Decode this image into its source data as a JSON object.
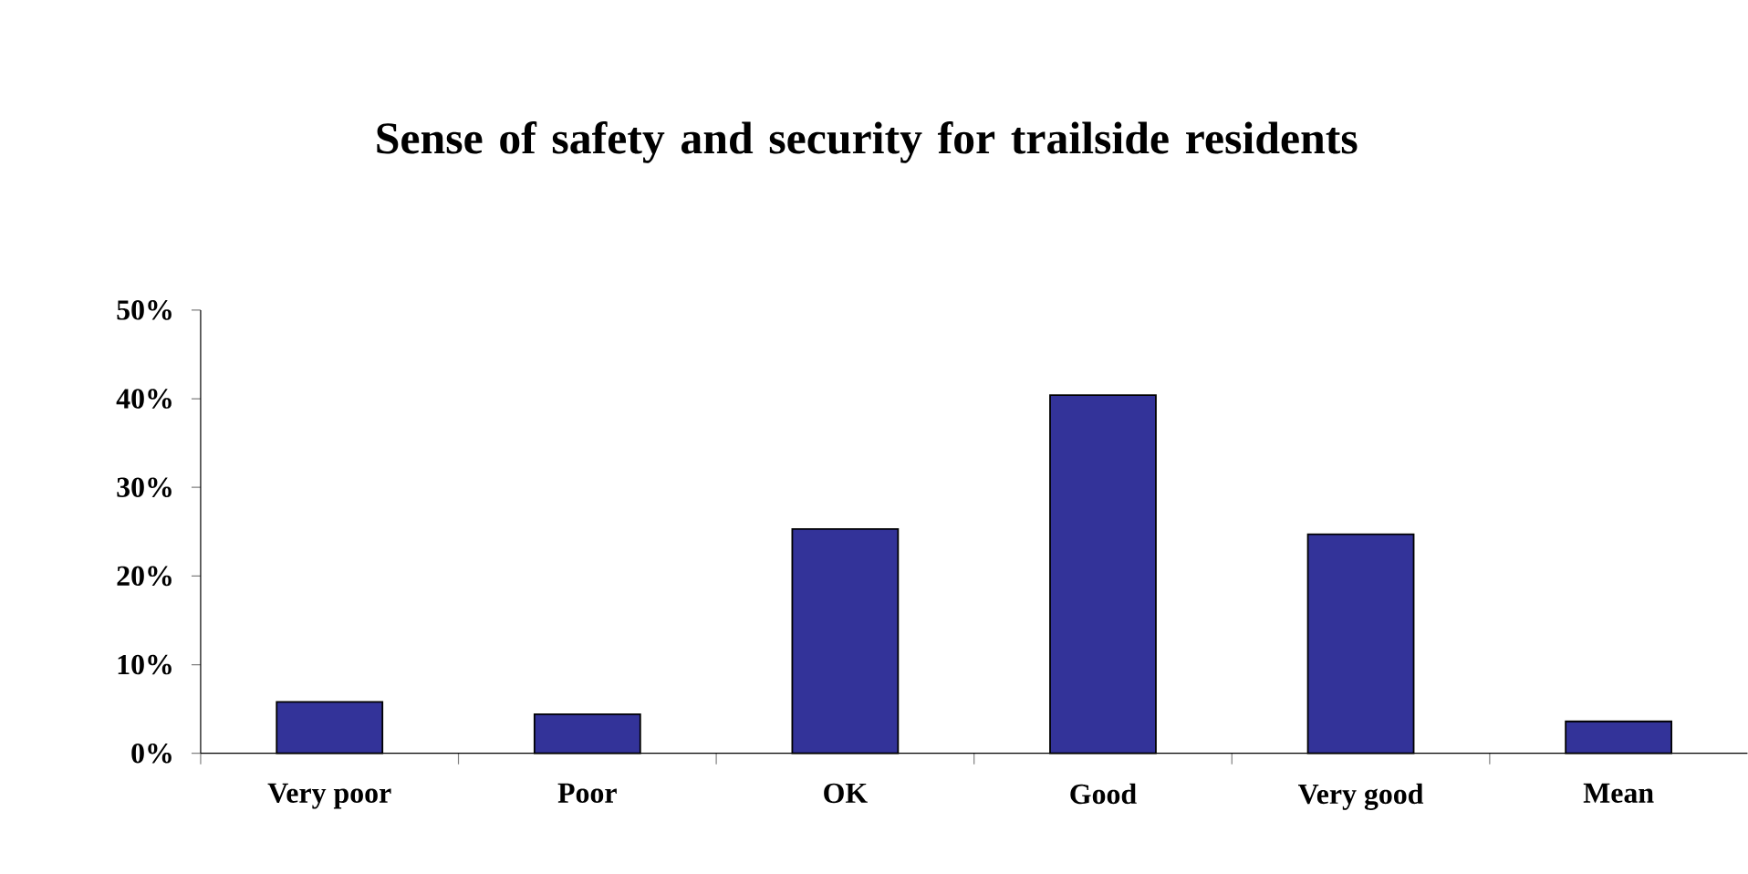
{
  "chart_data": {
    "type": "bar",
    "title": "Sense of safety and security for trailside residents",
    "categories": [
      "Very poor",
      "Poor",
      "OK",
      "Good",
      "Very good",
      "Mean"
    ],
    "values": [
      5.8,
      4.4,
      25.3,
      40.4,
      24.7,
      3.6
    ],
    "color": "#333399",
    "ylim": [
      0,
      50
    ],
    "yticks": [
      {
        "value": 0,
        "label": "0%"
      },
      {
        "value": 10,
        "label": "10%"
      },
      {
        "value": 20,
        "label": "20%"
      },
      {
        "value": 30,
        "label": "30%"
      },
      {
        "value": 40,
        "label": "40%"
      },
      {
        "value": 50,
        "label": "50%"
      }
    ],
    "grid": false
  }
}
